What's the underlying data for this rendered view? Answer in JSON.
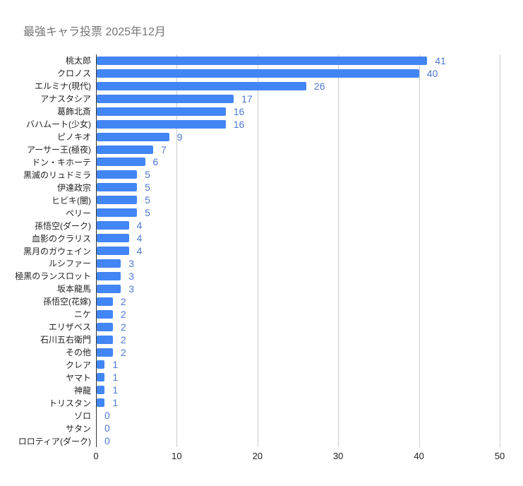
{
  "title": "最強キャラ投票 2025年12月",
  "chart_data": {
    "type": "bar",
    "orientation": "horizontal",
    "title": "最強キャラ投票 2025年12月",
    "xlabel": "",
    "ylabel": "",
    "xlim": [
      0,
      50
    ],
    "x_ticks": [
      "0",
      "10",
      "20",
      "30",
      "40",
      "50"
    ],
    "grid": true,
    "legend_position": "none",
    "bar_color": "#4285f4",
    "annotation_color": "#4d79d3",
    "categories": [
      "桃太郎",
      "クロノス",
      "エルミナ(現代)",
      "アナスタシア",
      "葛飾北斎",
      "バハムート(少女)",
      "ピノキオ",
      "アーサー王(極夜)",
      "ドン・キホーテ",
      "黒滅のリュドミラ",
      "伊達政宗",
      "ヒビキ(闇)",
      "ペリー",
      "孫悟空(ダーク)",
      "血影のクラリス",
      "黒月のガウェイン",
      "ルシファー",
      "極黒のランスロット",
      "坂本龍馬",
      "孫悟空(花嫁)",
      "ニケ",
      "エリザベス",
      "石川五右衛門",
      "その他",
      "クレア",
      "ヤマト",
      "神龍",
      "トリスタン",
      "ゾロ",
      "サタン",
      "ロロティア(ダーク)"
    ],
    "values": [
      41,
      40,
      26,
      17,
      16,
      16,
      9,
      7,
      6,
      5,
      5,
      5,
      5,
      4,
      4,
      4,
      3,
      3,
      3,
      2,
      2,
      2,
      2,
      2,
      1,
      1,
      1,
      1,
      0,
      0,
      0
    ]
  }
}
